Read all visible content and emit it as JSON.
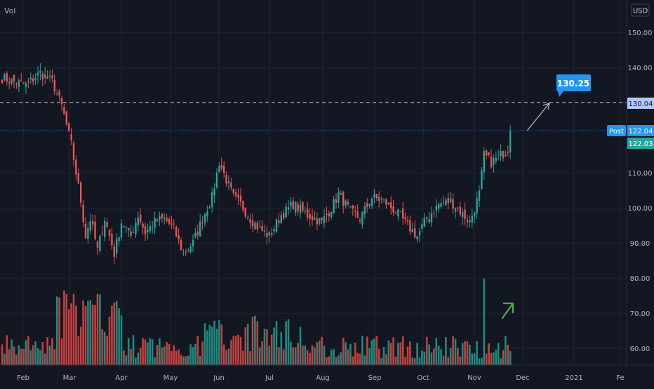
{
  "header": {
    "vol_label": "Vol",
    "currency_badge": "USD"
  },
  "colors": {
    "background": "#131722",
    "grid": "#1f2430",
    "up": "#26a69a",
    "down": "#ef5350",
    "up_volume": "#1f8a80",
    "down_volume": "#c2413f",
    "axis_text": "#b2b5be",
    "target_line": "#d1d4dc",
    "post_line": "#2962ff",
    "post_badge": "#2196f3",
    "last_badge": "#26a69a",
    "target_badge": "#2196f3",
    "target_price_badge": "#b2c8ff",
    "arrow_annotation": "#4caf50"
  },
  "icons": {
    "annotation_arrow": "arrow-up-right-icon"
  },
  "chart_data": {
    "type": "candlestick",
    "title": "",
    "price_axis": {
      "labels": [
        "150.00",
        "140.00",
        "110.00",
        "100.00",
        "90.00",
        "80.00",
        "70.00",
        "60.00"
      ],
      "values": [
        150,
        140,
        110,
        100,
        90,
        80,
        70,
        60
      ],
      "range": [
        55,
        155
      ]
    },
    "time_axis": {
      "labels": [
        "Feb",
        "Mar",
        "Apr",
        "May",
        "Jun",
        "Jul",
        "Aug",
        "Sep",
        "Oct",
        "Nov",
        "Dec",
        "2021",
        "Fe"
      ]
    },
    "anchors": [
      {
        "i": 0,
        "v": 137
      },
      {
        "i": 10,
        "v": 135
      },
      {
        "i": 16,
        "v": 138.5
      },
      {
        "i": 21,
        "v": 136
      },
      {
        "i": 25,
        "v": 129
      },
      {
        "i": 29,
        "v": 118
      },
      {
        "i": 33,
        "v": 102
      },
      {
        "i": 35,
        "v": 92
      },
      {
        "i": 37,
        "v": 97
      },
      {
        "i": 40,
        "v": 88
      },
      {
        "i": 43,
        "v": 97
      },
      {
        "i": 47,
        "v": 87
      },
      {
        "i": 50,
        "v": 96
      },
      {
        "i": 54,
        "v": 92
      },
      {
        "i": 57,
        "v": 98
      },
      {
        "i": 60,
        "v": 93
      },
      {
        "i": 64,
        "v": 96
      },
      {
        "i": 68,
        "v": 97
      },
      {
        "i": 72,
        "v": 94
      },
      {
        "i": 76,
        "v": 87
      },
      {
        "i": 80,
        "v": 90
      },
      {
        "i": 84,
        "v": 97
      },
      {
        "i": 88,
        "v": 103
      },
      {
        "i": 91,
        "v": 113
      },
      {
        "i": 94,
        "v": 108
      },
      {
        "i": 97,
        "v": 103
      },
      {
        "i": 100,
        "v": 101
      },
      {
        "i": 104,
        "v": 97
      },
      {
        "i": 108,
        "v": 94
      },
      {
        "i": 112,
        "v": 92
      },
      {
        "i": 117,
        "v": 98
      },
      {
        "i": 122,
        "v": 101
      },
      {
        "i": 128,
        "v": 98
      },
      {
        "i": 134,
        "v": 96
      },
      {
        "i": 138,
        "v": 100
      },
      {
        "i": 141,
        "v": 104
      },
      {
        "i": 146,
        "v": 99
      },
      {
        "i": 150,
        "v": 97
      },
      {
        "i": 155,
        "v": 103
      },
      {
        "i": 160,
        "v": 102
      },
      {
        "i": 165,
        "v": 99
      },
      {
        "i": 170,
        "v": 95
      },
      {
        "i": 174,
        "v": 92
      },
      {
        "i": 178,
        "v": 97
      },
      {
        "i": 183,
        "v": 101
      },
      {
        "i": 188,
        "v": 102
      },
      {
        "i": 192,
        "v": 99
      },
      {
        "i": 196,
        "v": 96
      },
      {
        "i": 198,
        "v": 100
      },
      {
        "i": 200,
        "v": 104
      },
      {
        "i": 202,
        "v": 115
      },
      {
        "i": 205,
        "v": 113
      },
      {
        "i": 209,
        "v": 115
      },
      {
        "i": 212,
        "v": 117
      },
      {
        "i": 213,
        "v": 122
      }
    ],
    "series": [
      {
        "name": "Vol"
      }
    ],
    "volume_range": [
      0,
      150
    ],
    "marker": {
      "post_label": "Post",
      "post_price": "122.04",
      "post_value": 122.04,
      "last_price": "122.03",
      "last_value": 122.03,
      "target_price": "130.25",
      "target_value": 130.25,
      "target_line_label": "130.04",
      "target_line_value": 130.04
    },
    "grid": true
  }
}
